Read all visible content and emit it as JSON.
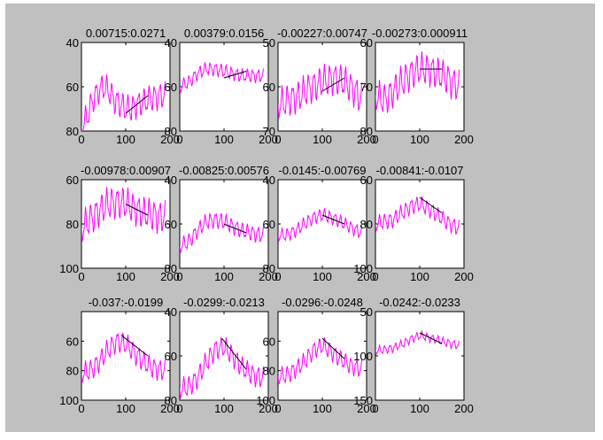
{
  "chart_data": [
    {
      "type": "line",
      "title": "0.00715:0.0271",
      "xlim": [
        0,
        200
      ],
      "ylim": [
        40,
        80
      ],
      "yreverse": true,
      "xticks": [
        0,
        100,
        200
      ],
      "yticks": [
        40,
        60,
        80
      ],
      "signal": {
        "color": "#ff00ff",
        "baseline": [
          [
            0,
            78
          ],
          [
            12,
            74
          ],
          [
            25,
            66
          ],
          [
            38,
            62
          ],
          [
            50,
            60
          ],
          [
            62,
            62
          ],
          [
            75,
            66
          ],
          [
            88,
            68
          ],
          [
            100,
            70
          ],
          [
            112,
            70
          ],
          [
            125,
            68
          ],
          [
            138,
            67
          ],
          [
            150,
            66
          ],
          [
            162,
            65
          ],
          [
            175,
            64
          ],
          [
            188,
            64
          ]
        ],
        "amp": 5,
        "period": 12
      },
      "trend": {
        "color": "#000000",
        "points": [
          [
            100,
            72
          ],
          [
            150,
            64
          ]
        ]
      }
    },
    {
      "type": "line",
      "title": "0.00379:0.0156",
      "xlim": [
        0,
        200
      ],
      "ylim": [
        40,
        80
      ],
      "yreverse": true,
      "xticks": [
        0,
        100,
        200
      ],
      "yticks": [
        40,
        60,
        80
      ],
      "signal": {
        "color": "#ff00ff",
        "baseline": [
          [
            0,
            60
          ],
          [
            20,
            58
          ],
          [
            40,
            54
          ],
          [
            60,
            52
          ],
          [
            80,
            52
          ],
          [
            100,
            53
          ],
          [
            120,
            54
          ],
          [
            140,
            55
          ],
          [
            160,
            55
          ],
          [
            188,
            55
          ]
        ],
        "amp": 2.5,
        "period": 12
      },
      "trend": {
        "color": "#000000",
        "points": [
          [
            100,
            56
          ],
          [
            150,
            53
          ]
        ]
      }
    },
    {
      "type": "line",
      "title": "-0.00227:0.00747",
      "xlim": [
        0,
        200
      ],
      "ylim": [
        50,
        70
      ],
      "yreverse": true,
      "xticks": [
        0,
        100,
        200
      ],
      "yticks": [
        50,
        60,
        70
      ],
      "signal": {
        "color": "#ff00ff",
        "baseline": [
          [
            0,
            64
          ],
          [
            25,
            63
          ],
          [
            50,
            62
          ],
          [
            75,
            60
          ],
          [
            100,
            59
          ],
          [
            125,
            58
          ],
          [
            150,
            59
          ],
          [
            175,
            61
          ],
          [
            188,
            63
          ]
        ],
        "amp": 3,
        "period": 12
      },
      "trend": {
        "color": "#000000",
        "points": [
          [
            100,
            61
          ],
          [
            150,
            58
          ]
        ]
      }
    },
    {
      "type": "line",
      "title": "-0.00273:0.000911",
      "xlim": [
        0,
        200
      ],
      "ylim": [
        60,
        80
      ],
      "yreverse": true,
      "xticks": [
        0,
        100,
        200
      ],
      "yticks": [
        60,
        70,
        80
      ],
      "signal": {
        "color": "#ff00ff",
        "baseline": [
          [
            0,
            72
          ],
          [
            20,
            73
          ],
          [
            40,
            71
          ],
          [
            60,
            69
          ],
          [
            80,
            67
          ],
          [
            100,
            66
          ],
          [
            120,
            66
          ],
          [
            140,
            67
          ],
          [
            160,
            68
          ],
          [
            188,
            70
          ]
        ],
        "amp": 3,
        "period": 12
      },
      "trend": {
        "color": "#000000",
        "points": [
          [
            100,
            66
          ],
          [
            150,
            66
          ]
        ]
      }
    },
    {
      "type": "line",
      "title": "-0.00978:0.00907",
      "xlim": [
        0,
        200
      ],
      "ylim": [
        60,
        100
      ],
      "yreverse": true,
      "xticks": [
        0,
        100,
        200
      ],
      "yticks": [
        60,
        80,
        100
      ],
      "signal": {
        "color": "#ff00ff",
        "baseline": [
          [
            0,
            82
          ],
          [
            20,
            78
          ],
          [
            40,
            74
          ],
          [
            60,
            71
          ],
          [
            80,
            70
          ],
          [
            100,
            71
          ],
          [
            120,
            73
          ],
          [
            140,
            75
          ],
          [
            160,
            76
          ],
          [
            188,
            77
          ]
        ],
        "amp": 6,
        "period": 12
      },
      "trend": {
        "color": "#000000",
        "points": [
          [
            100,
            71
          ],
          [
            150,
            76
          ]
        ]
      }
    },
    {
      "type": "line",
      "title": "-0.00825:0.00576",
      "xlim": [
        0,
        200
      ],
      "ylim": [
        40,
        80
      ],
      "yreverse": true,
      "xticks": [
        0,
        100,
        200
      ],
      "yticks": [
        40,
        60,
        80
      ],
      "signal": {
        "color": "#ff00ff",
        "baseline": [
          [
            0,
            70
          ],
          [
            20,
            68
          ],
          [
            40,
            63
          ],
          [
            60,
            59
          ],
          [
            80,
            58
          ],
          [
            100,
            59
          ],
          [
            120,
            61
          ],
          [
            140,
            63
          ],
          [
            160,
            64
          ],
          [
            188,
            65
          ]
        ],
        "amp": 3,
        "period": 12
      },
      "trend": {
        "color": "#000000",
        "points": [
          [
            100,
            60
          ],
          [
            150,
            64
          ]
        ]
      }
    },
    {
      "type": "line",
      "title": "-0.0145:-0.00769",
      "xlim": [
        0,
        200
      ],
      "ylim": [
        40,
        80
      ],
      "yreverse": true,
      "xticks": [
        0,
        100,
        200
      ],
      "yticks": [
        40,
        60,
        80
      ],
      "signal": {
        "color": "#ff00ff",
        "baseline": [
          [
            0,
            65
          ],
          [
            20,
            65
          ],
          [
            40,
            63
          ],
          [
            60,
            60
          ],
          [
            80,
            57
          ],
          [
            100,
            56
          ],
          [
            120,
            57
          ],
          [
            140,
            59
          ],
          [
            160,
            61
          ],
          [
            188,
            64
          ]
        ],
        "amp": 2.5,
        "period": 12
      },
      "trend": {
        "color": "#000000",
        "points": [
          [
            100,
            56
          ],
          [
            150,
            60
          ]
        ]
      }
    },
    {
      "type": "line",
      "title": "-0.00841:-0.0107",
      "xlim": [
        0,
        200
      ],
      "ylim": [
        60,
        100
      ],
      "yreverse": true,
      "xticks": [
        0,
        100,
        200
      ],
      "yticks": [
        60,
        80,
        100
      ],
      "signal": {
        "color": "#ff00ff",
        "baseline": [
          [
            0,
            80
          ],
          [
            20,
            79
          ],
          [
            40,
            78
          ],
          [
            60,
            75
          ],
          [
            80,
            72
          ],
          [
            100,
            71
          ],
          [
            120,
            73
          ],
          [
            140,
            76
          ],
          [
            160,
            79
          ],
          [
            188,
            82
          ]
        ],
        "amp": 3,
        "period": 12
      },
      "trend": {
        "color": "#000000",
        "points": [
          [
            100,
            68
          ],
          [
            150,
            75
          ]
        ]
      }
    },
    {
      "type": "line",
      "title": "-0.037:-0.0199",
      "xlim": [
        0,
        200
      ],
      "ylim": [
        40,
        100
      ],
      "yreverse": true,
      "xticks": [
        0,
        100,
        200
      ],
      "yticks": [
        60,
        80,
        100
      ],
      "signal": {
        "color": "#ff00ff",
        "baseline": [
          [
            0,
            82
          ],
          [
            20,
            80
          ],
          [
            40,
            74
          ],
          [
            60,
            66
          ],
          [
            80,
            60
          ],
          [
            100,
            62
          ],
          [
            120,
            68
          ],
          [
            140,
            74
          ],
          [
            160,
            78
          ],
          [
            188,
            80
          ]
        ],
        "amp": 6,
        "period": 12
      },
      "trend": {
        "color": "#000000",
        "points": [
          [
            90,
            56
          ],
          [
            150,
            70
          ]
        ]
      }
    },
    {
      "type": "line",
      "title": "-0.0299:-0.0213",
      "xlim": [
        0,
        200
      ],
      "ylim": [
        40,
        80
      ],
      "yreverse": true,
      "xticks": [
        0,
        100,
        200
      ],
      "yticks": [
        40,
        60,
        80
      ],
      "signal": {
        "color": "#ff00ff",
        "baseline": [
          [
            0,
            75
          ],
          [
            20,
            74
          ],
          [
            40,
            70
          ],
          [
            60,
            63
          ],
          [
            80,
            57
          ],
          [
            100,
            56
          ],
          [
            120,
            60
          ],
          [
            140,
            65
          ],
          [
            160,
            68
          ],
          [
            188,
            70
          ]
        ],
        "amp": 4,
        "period": 12
      },
      "trend": {
        "color": "#000000",
        "points": [
          [
            95,
            52
          ],
          [
            150,
            66
          ]
        ]
      }
    },
    {
      "type": "line",
      "title": "-0.0296:-0.0248",
      "xlim": [
        0,
        200
      ],
      "ylim": [
        40,
        100
      ],
      "yreverse": true,
      "xticks": [
        0,
        100,
        200
      ],
      "yticks": [
        60,
        80,
        100
      ],
      "signal": {
        "color": "#ff00ff",
        "baseline": [
          [
            0,
            84
          ],
          [
            20,
            83
          ],
          [
            40,
            79
          ],
          [
            60,
            74
          ],
          [
            80,
            66
          ],
          [
            100,
            63
          ],
          [
            120,
            67
          ],
          [
            140,
            72
          ],
          [
            160,
            76
          ],
          [
            188,
            79
          ]
        ],
        "amp": 5,
        "period": 12
      },
      "trend": {
        "color": "#000000",
        "points": [
          [
            100,
            58
          ],
          [
            150,
            72
          ]
        ]
      }
    },
    {
      "type": "line",
      "title": "-0.0242:-0.0233",
      "xlim": [
        0,
        200
      ],
      "ylim": [
        50,
        150
      ],
      "yreverse": true,
      "xticks": [
        0,
        100,
        200
      ],
      "yticks": [
        50,
        100,
        150
      ],
      "signal": {
        "color": "#ff00ff",
        "baseline": [
          [
            0,
            94
          ],
          [
            20,
            93
          ],
          [
            40,
            91
          ],
          [
            60,
            87
          ],
          [
            80,
            81
          ],
          [
            100,
            77
          ],
          [
            120,
            79
          ],
          [
            140,
            82
          ],
          [
            160,
            85
          ],
          [
            188,
            88
          ]
        ],
        "amp": 4,
        "period": 12
      },
      "trend": {
        "color": "#000000",
        "points": [
          [
            100,
            74
          ],
          [
            150,
            86
          ]
        ]
      }
    }
  ]
}
